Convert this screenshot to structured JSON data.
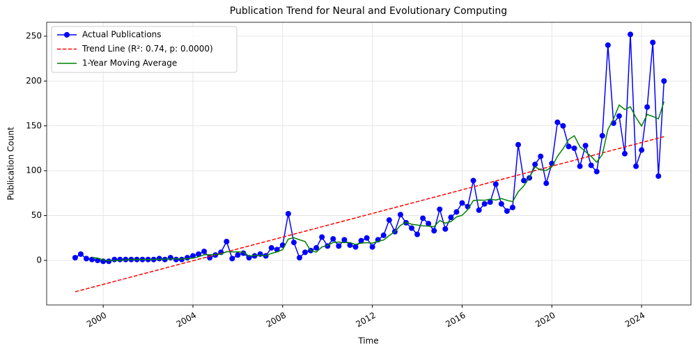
{
  "chart_data": {
    "type": "line",
    "title": "Publication Trend for Neural and Evolutionary Computing",
    "x_label": "Time",
    "y_label": "Publication Count",
    "x": [
      1998.75,
      1999,
      1999.25,
      1999.5,
      1999.75,
      2000,
      2000.25,
      2000.5,
      2000.75,
      2001,
      2001.25,
      2001.5,
      2001.75,
      2002,
      2002.25,
      2002.5,
      2002.75,
      2003,
      2003.25,
      2003.5,
      2003.75,
      2004,
      2004.25,
      2004.5,
      2004.75,
      2005,
      2005.25,
      2005.5,
      2005.75,
      2006,
      2006.25,
      2006.5,
      2006.75,
      2007,
      2007.25,
      2007.5,
      2007.75,
      2008,
      2008.25,
      2008.5,
      2008.75,
      2009,
      2009.25,
      2009.5,
      2009.75,
      2010,
      2010.25,
      2010.5,
      2010.75,
      2011,
      2011.25,
      2011.5,
      2011.75,
      2012,
      2012.25,
      2012.5,
      2012.75,
      2013,
      2013.25,
      2013.5,
      2013.75,
      2014,
      2014.25,
      2014.5,
      2014.75,
      2015,
      2015.25,
      2015.5,
      2015.75,
      2016,
      2016.25,
      2016.5,
      2016.75,
      2017,
      2017.25,
      2017.5,
      2017.75,
      2018,
      2018.25,
      2018.5,
      2018.75,
      2019,
      2019.25,
      2019.5,
      2019.75,
      2020,
      2020.25,
      2020.5,
      2020.75,
      2021,
      2021.25,
      2021.5,
      2021.75,
      2022,
      2022.25,
      2022.5,
      2022.75,
      2023,
      2023.25,
      2023.5,
      2023.75,
      2024,
      2024.25,
      2024.5,
      2024.75,
      2025
    ],
    "series": [
      {
        "name": "Actual Publications",
        "color": "#0000ff",
        "marker": "o",
        "linestyle": "solid",
        "values": [
          3,
          7,
          2,
          1,
          0,
          -1,
          -1,
          1,
          1,
          1,
          1,
          1,
          1,
          1,
          1,
          2,
          1,
          3,
          1,
          1,
          3,
          5,
          7,
          10,
          3,
          6,
          9,
          21,
          2,
          6,
          8,
          3,
          5,
          7,
          5,
          14,
          12,
          17,
          52,
          20,
          3,
          9,
          11,
          14,
          26,
          16,
          24,
          16,
          23,
          17,
          15,
          22,
          25,
          15,
          23,
          28,
          45,
          32,
          51,
          42,
          36,
          29,
          47,
          41,
          33,
          57,
          35,
          48,
          54,
          64,
          60,
          89,
          56,
          63,
          65,
          85,
          63,
          55,
          59,
          129,
          89,
          92,
          107,
          116,
          86,
          108,
          154,
          150,
          127,
          125,
          105,
          128,
          106,
          99,
          139,
          240,
          153,
          161,
          119,
          252,
          105,
          123,
          171,
          243,
          94,
          200
        ]
      },
      {
        "name": "Trend Line (R²: 0.74, p: 0.0000)",
        "color": "#ff0000",
        "linestyle": "dashed",
        "x": [
          1998.75,
          2025
        ],
        "values": [
          -35,
          138
        ]
      },
      {
        "name": "1-Year Moving Average",
        "color": "#008000",
        "linestyle": "solid",
        "values": [
          null,
          null,
          null,
          3.25,
          2.5,
          0.5,
          -0.25,
          -0.25,
          0,
          0.5,
          1,
          1,
          1,
          1,
          1,
          1.25,
          1.25,
          1.75,
          1.75,
          1.5,
          2,
          2.5,
          4,
          6.25,
          6.25,
          6.5,
          7,
          9.75,
          9.5,
          9.5,
          9.25,
          4.75,
          5.5,
          5.75,
          5,
          7.75,
          9.5,
          12,
          23.75,
          25.25,
          23,
          21,
          10.75,
          9.25,
          15,
          16.75,
          20,
          20.5,
          19.75,
          20,
          17.75,
          19.25,
          19.75,
          19.25,
          21.25,
          22.75,
          27.75,
          32,
          39,
          42.5,
          40.25,
          39.5,
          38.5,
          38.25,
          37.5,
          44.5,
          41.5,
          43.25,
          48.5,
          50.25,
          56.5,
          66.75,
          67.25,
          67,
          68.25,
          67.25,
          69,
          67,
          65.5,
          76.5,
          83,
          92.25,
          104.25,
          101,
          100.25,
          104.25,
          116,
          124.5,
          134.75,
          139,
          126.75,
          121.25,
          116,
          109.5,
          118,
          146,
          157.75,
          173.25,
          168.25,
          171.25,
          159.25,
          149.75,
          162.75,
          160.5,
          157.75,
          177
        ]
      }
    ],
    "xlim": [
      1997.48,
      2026.2
    ],
    "ylim": [
      -49.7,
      265.5
    ],
    "xticks": [
      2000,
      2004,
      2008,
      2012,
      2016,
      2020,
      2024
    ],
    "yticks": [
      0,
      50,
      100,
      150,
      200,
      250
    ],
    "grid": true,
    "legend": "upper left"
  }
}
